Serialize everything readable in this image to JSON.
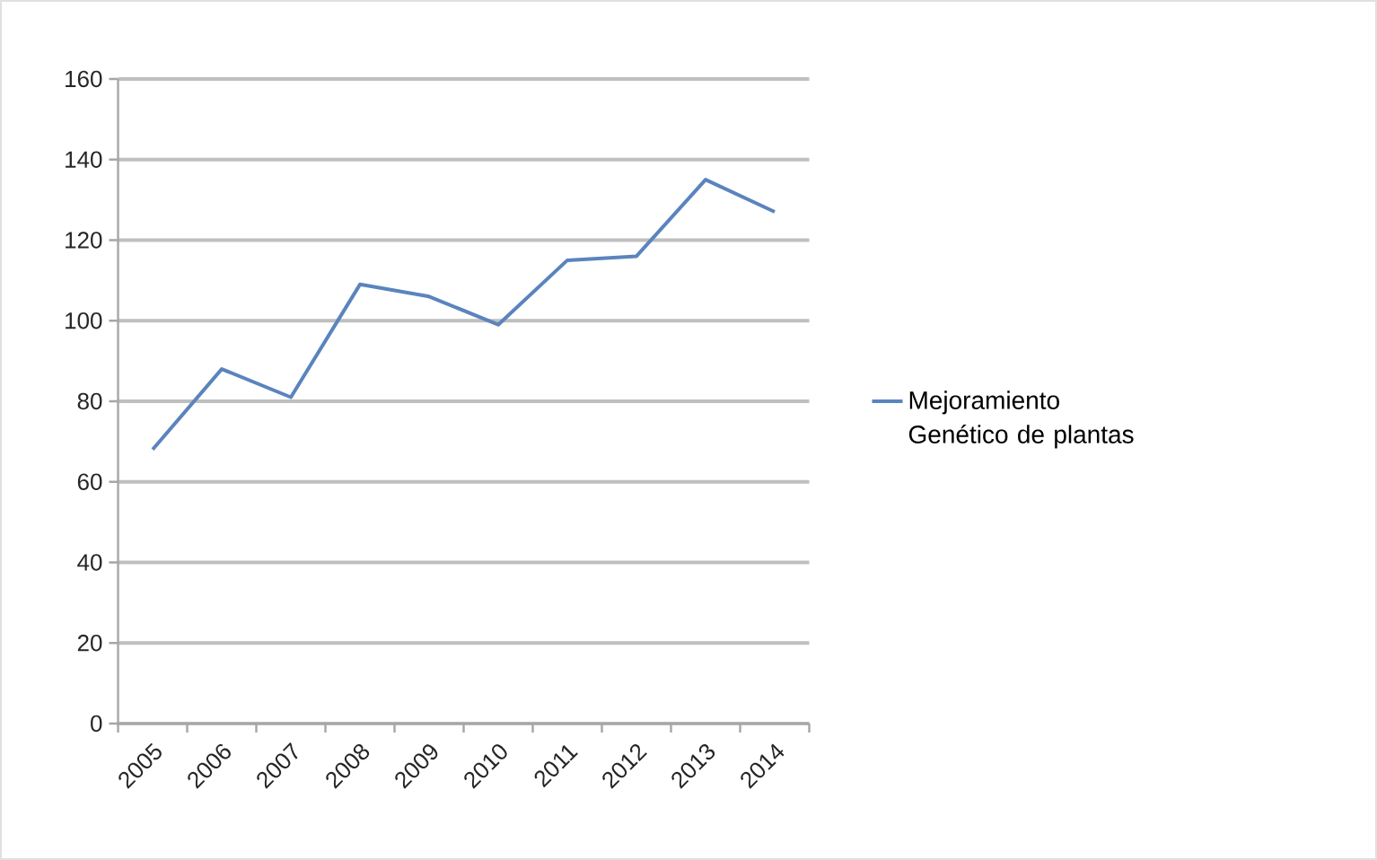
{
  "chart_data": {
    "type": "line",
    "categories": [
      "2005",
      "2006",
      "2007",
      "2008",
      "2009",
      "2010",
      "2011",
      "2012",
      "2013",
      "2014"
    ],
    "series": [
      {
        "name": "Mejoramiento Genético de plantas",
        "color": "#5b84bd",
        "values": [
          68,
          88,
          81,
          109,
          106,
          99,
          115,
          116,
          135,
          127
        ]
      }
    ],
    "ylim": [
      0,
      160
    ],
    "yticks": [
      0,
      20,
      40,
      60,
      80,
      100,
      120,
      140,
      160
    ],
    "grid": "y",
    "legend": "right",
    "marker": "none",
    "line_style": "solid"
  }
}
